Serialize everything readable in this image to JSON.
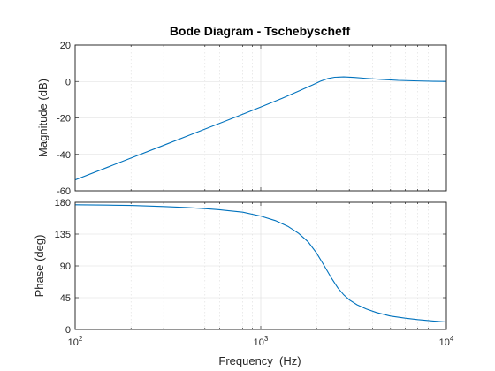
{
  "chart_data": {
    "type": "line",
    "title": "Bode Diagram - Tschebyscheff",
    "xlabel": "Frequency  (Hz)",
    "x_scale": "log",
    "xlim": [
      100,
      10000
    ],
    "x_tick_labels": [
      {
        "base": "10",
        "exp": "2"
      },
      {
        "base": "10",
        "exp": "3"
      },
      {
        "base": "10",
        "exp": "4"
      }
    ],
    "grid": true,
    "line_color": "#0072BD",
    "panels": [
      {
        "id": "magnitude",
        "ylabel": "Magnitude (dB)",
        "ylim": [
          -60,
          20
        ],
        "y_ticks": [
          20,
          0,
          -20,
          -40,
          -60
        ],
        "y_tick_labels": [
          "20",
          "0",
          "-20",
          "-40",
          "-60"
        ],
        "series": [
          {
            "x": [
              100,
              150,
              200,
              300,
              400,
              500,
              700,
              1000,
              1300,
              1600,
              1900,
              2100,
              2300,
              2500,
              2800,
              3200,
              3700,
              4500,
              5500,
              7000,
              8500,
              10000
            ],
            "y": [
              -54,
              -47,
              -42,
              -35,
              -30,
              -26.1,
              -20.3,
              -14,
              -9.3,
              -5.3,
              -1.9,
              0.2,
              1.6,
              2.3,
              2.5,
              2.2,
              1.7,
              1.1,
              0.6,
              0.3,
              0.1,
              0.05
            ]
          }
        ]
      },
      {
        "id": "phase",
        "ylabel": "Phase (deg)",
        "ylim": [
          0,
          180
        ],
        "y_ticks": [
          180,
          135,
          90,
          45,
          0
        ],
        "y_tick_labels": [
          "180",
          "135",
          "90",
          "45",
          "0"
        ],
        "series": [
          {
            "x": [
              100,
              150,
              200,
              300,
              400,
              500,
              600,
              800,
              1000,
              1200,
              1400,
              1600,
              1800,
              2000,
              2200,
              2400,
              2600,
              2800,
              3000,
              3300,
              3700,
              4200,
              5000,
              6000,
              7000,
              8500,
              10000
            ],
            "y": [
              176.5,
              176,
              175.5,
              174,
              172.6,
              171,
              169.4,
              166,
              160.5,
              154,
              146,
              136,
              124,
              108,
              90,
              73,
              59,
              49,
              42,
              35,
              29,
              24,
              19,
              16,
              14,
              12,
              10.5
            ]
          }
        ]
      }
    ]
  }
}
